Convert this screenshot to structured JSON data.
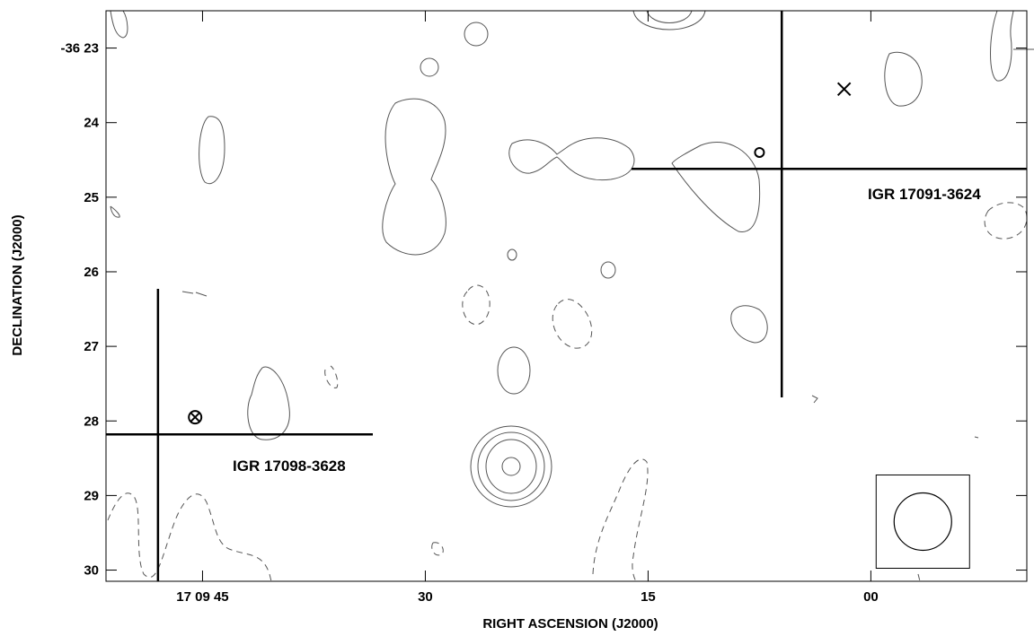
{
  "chart_data": {
    "type": "contour",
    "xlabel": "RIGHT ASCENSION (J2000)",
    "ylabel": "DECLINATION (J2000)",
    "x_ticks": [
      {
        "ra_sec": 45,
        "label": "17 09 45"
      },
      {
        "ra_sec": 30,
        "label": "30"
      },
      {
        "ra_sec": 15,
        "label": "15"
      },
      {
        "ra_sec": 0,
        "label": "00"
      }
    ],
    "y_ticks": [
      {
        "dec_min": 23,
        "label": "-36 23"
      },
      {
        "dec_min": 24,
        "label": "24"
      },
      {
        "dec_min": 25,
        "label": "25"
      },
      {
        "dec_min": 26,
        "label": "26"
      },
      {
        "dec_min": 27,
        "label": "27"
      },
      {
        "dec_min": 28,
        "label": "28"
      },
      {
        "dec_min": 29,
        "label": "29"
      },
      {
        "dec_min": 30,
        "label": "30"
      }
    ],
    "xlim": [
      51.5,
      -10.5
    ],
    "ylim": [
      30.15,
      22.5
    ],
    "sources": [
      {
        "name": "IGR 17091-3624",
        "ra_sec": 6.0,
        "dec_min": 24.62
      },
      {
        "name": "IGR 17098-3628",
        "ra_sec": 48.0,
        "dec_min": 28.18
      }
    ],
    "markers": [
      {
        "symbol": "x",
        "ra_sec": 1.8,
        "dec_min": 23.55
      },
      {
        "symbol": "circle",
        "ra_sec": 7.5,
        "dec_min": 24.4
      },
      {
        "symbol": "circle-x",
        "ra_sec": 45.5,
        "dec_min": 27.95
      }
    ],
    "beam": {
      "ra_sec": -3.5,
      "dec_min": 29.35
    }
  }
}
